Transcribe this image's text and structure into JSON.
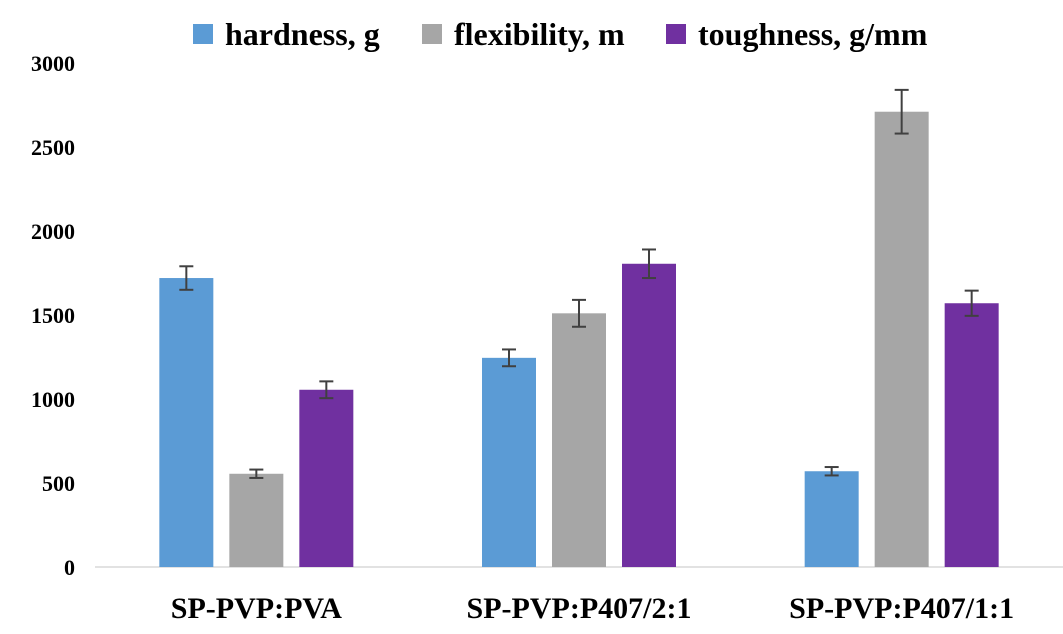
{
  "chart_data": {
    "type": "bar",
    "categories": [
      "SP-PVP:PVA",
      "SP-PVP:P407/2:1",
      "SP-PVP:P407/1:1"
    ],
    "series": [
      {
        "name": "hardness, g",
        "color": "#5b9bd5",
        "values": [
          1720,
          1245,
          570
        ],
        "errors": [
          70,
          50,
          25
        ]
      },
      {
        "name": "flexibility, m",
        "color": "#a6a6a6",
        "values": [
          555,
          1510,
          2710
        ],
        "errors": [
          25,
          80,
          130
        ]
      },
      {
        "name": "toughness, g/mm",
        "color": "#7030a0",
        "values": [
          1055,
          1805,
          1570
        ],
        "errors": [
          50,
          85,
          75
        ]
      }
    ],
    "ylim": [
      0,
      3000
    ],
    "yticks": [
      0,
      500,
      1000,
      1500,
      2000,
      2500,
      3000
    ],
    "legend_position": "top",
    "grid": false
  }
}
